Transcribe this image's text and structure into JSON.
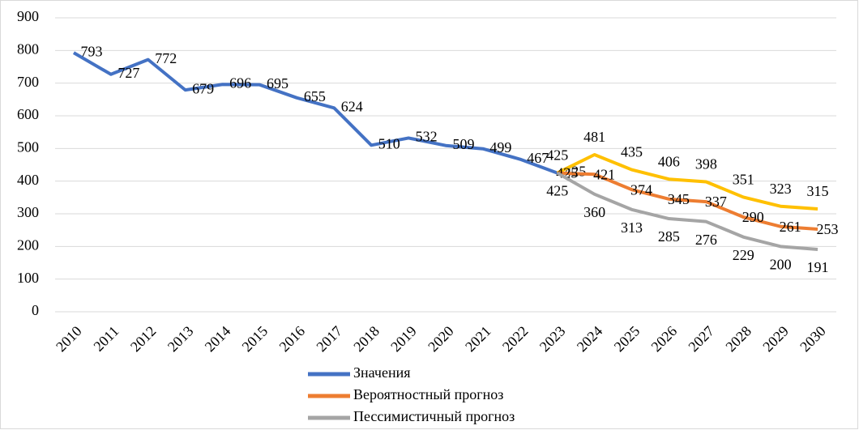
{
  "chart_data": {
    "type": "line",
    "categories": [
      "2010",
      "2011",
      "2012",
      "2013",
      "2014",
      "2015",
      "2016",
      "2017",
      "2018",
      "2019",
      "2020",
      "2021",
      "2022",
      "2023",
      "2024",
      "2025",
      "2026",
      "2027",
      "2028",
      "2029",
      "2030"
    ],
    "series": [
      {
        "name": "Значения",
        "color": "#4472c4",
        "values": [
          793,
          727,
          772,
          679,
          696,
          695,
          655,
          624,
          510,
          532,
          509,
          499,
          467,
          425,
          null,
          null,
          null,
          null,
          null,
          null,
          null
        ]
      },
      {
        "color": "#ffc000",
        "values": [
          null,
          null,
          null,
          null,
          null,
          null,
          null,
          null,
          null,
          null,
          null,
          null,
          null,
          425,
          481,
          435,
          406,
          398,
          351,
          323,
          315
        ]
      },
      {
        "name": "Вероятностный прогноз",
        "color": "#ed7d31",
        "values": [
          null,
          null,
          null,
          null,
          null,
          null,
          null,
          null,
          null,
          null,
          null,
          null,
          null,
          425,
          421,
          374,
          345,
          337,
          290,
          261,
          253
        ]
      },
      {
        "name": "Пессимистичный прогноз",
        "color": "#a5a5a5",
        "values": [
          null,
          null,
          null,
          null,
          null,
          null,
          null,
          null,
          null,
          null,
          null,
          null,
          null,
          425,
          360,
          313,
          285,
          276,
          229,
          200,
          191
        ]
      }
    ],
    "ylim": [
      0,
      900
    ],
    "yticks": [
      0,
      100,
      200,
      300,
      400,
      500,
      600,
      700,
      800,
      900
    ],
    "grid": true
  }
}
